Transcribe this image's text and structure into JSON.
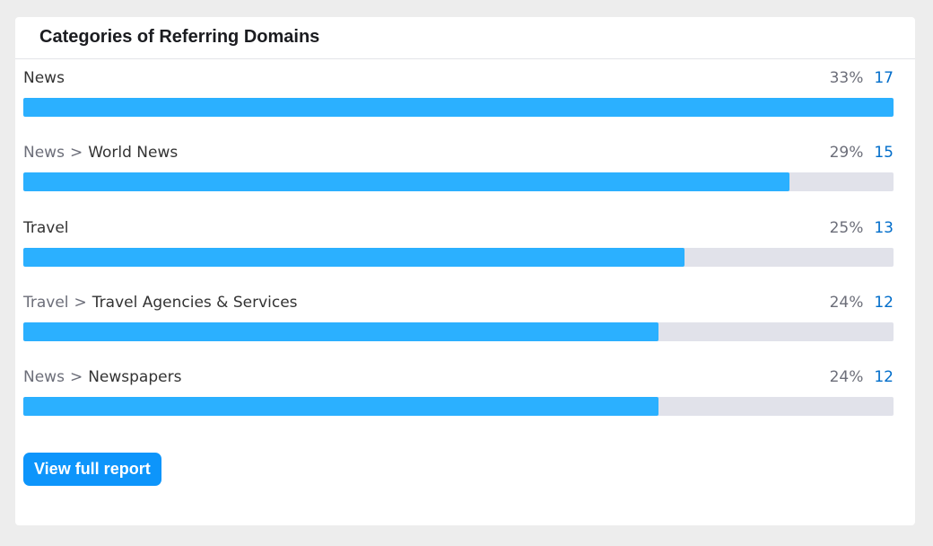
{
  "widget": {
    "title": "Categories of Referring Domains",
    "view_button_label": "View full report"
  },
  "rows": [
    {
      "parent": "",
      "separator": "",
      "child": "News",
      "percent": "33%",
      "count": "17",
      "fill": 1.0
    },
    {
      "parent": "News",
      "separator": ">",
      "child": "World News",
      "percent": "29%",
      "count": "15",
      "fill": 0.88
    },
    {
      "parent": "",
      "separator": "",
      "child": "Travel",
      "percent": "25%",
      "count": "13",
      "fill": 0.76
    },
    {
      "parent": "Travel",
      "separator": ">",
      "child": "Travel Agencies & Services",
      "percent": "24%",
      "count": "12",
      "fill": 0.73
    },
    {
      "parent": "News",
      "separator": ">",
      "child": "Newspapers",
      "percent": "24%",
      "count": "12",
      "fill": 0.73
    }
  ],
  "colors": {
    "bar_fill": "#2bb0ff",
    "bar_track": "#e1e2ea",
    "link": "#006dca",
    "button": "#0d95fb"
  }
}
